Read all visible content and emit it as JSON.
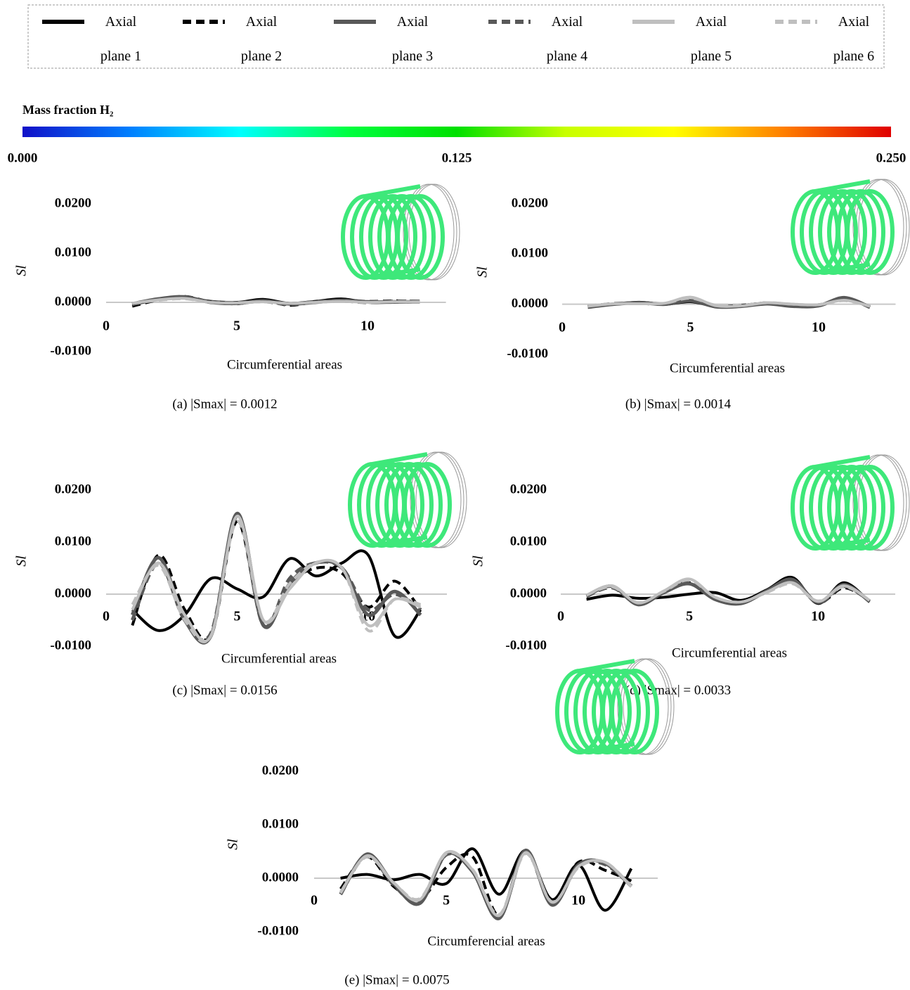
{
  "legend": {
    "series": [
      {
        "name": "Axial plane 1",
        "color": "#000000",
        "dash": false
      },
      {
        "name": "Axial plane 2",
        "color": "#000000",
        "dash": true
      },
      {
        "name": "Axial plane 3",
        "color": "#595959",
        "dash": false
      },
      {
        "name": "Axial plane 4",
        "color": "#595959",
        "dash": true
      },
      {
        "name": "Axial plane 5",
        "color": "#bfbfbf",
        "dash": false
      },
      {
        "name": "Axial plane 6",
        "color": "#bfbfbf",
        "dash": true
      }
    ]
  },
  "colorbar": {
    "title": "Mass fraction H₂",
    "lim": [
      0,
      0.25
    ],
    "colors": [
      "#1010c8",
      "#0080ff",
      "#00ffff",
      "#00ff40",
      "#00e000",
      "#c8ff00",
      "#ffff00",
      "#ff8000",
      "#e00000"
    ],
    "ticks": [
      {
        "value": 0,
        "label": "0.000"
      },
      {
        "value": 0.125,
        "label": "0.125"
      },
      {
        "value": 0.25,
        "label": "0.250"
      }
    ]
  },
  "chart_data": [
    {
      "type": "line",
      "caption": "(a)  |Smax| = 0.0012",
      "x_label": "Circumferential areas",
      "y_label": "Sl",
      "xlim": [
        0,
        13
      ],
      "ylim": [
        -0.01,
        0.02
      ],
      "xticks": [
        0,
        5,
        10
      ],
      "yticks": [
        {
          "value": -0.01,
          "label": "-0.0100"
        },
        {
          "value": 0,
          "label": "0.0000"
        },
        {
          "value": 0.01,
          "label": "0.0100"
        },
        {
          "value": 0.02,
          "label": "0.0200"
        }
      ],
      "x": [
        1,
        2,
        3,
        4,
        5,
        6,
        7,
        8,
        9,
        10,
        11,
        12
      ],
      "series": [
        {
          "values": [
            -0.0005,
            0.0006,
            0.001,
            0.0002,
            0,
            0.0006,
            -0.0002,
            0.0002,
            0.0007,
            0,
            0,
            0.0001
          ]
        },
        {
          "values": [
            -0.0008,
            0.0005,
            0.0012,
            0.0001,
            -0.0003,
            0.0004,
            -0.0006,
            0.0001,
            0.0005,
            0.0002,
            0.0003,
            0.0002
          ]
        },
        {
          "values": [
            -0.0003,
            0.0007,
            0.0011,
            0,
            -0.0002,
            0.0003,
            -0.0003,
            0,
            0.0004,
            0.0001,
            0.0001,
            0.0001
          ]
        },
        {
          "values": [
            -0.0004,
            0.0006,
            0.001,
            0.0001,
            -0.0001,
            0.0002,
            -0.0004,
            0.0001,
            0.0003,
            0,
            0.0002,
            0.0002
          ]
        },
        {
          "values": [
            -0.0002,
            0.0005,
            0.0008,
            0,
            -0.0001,
            0.0001,
            -0.0002,
            0,
            0.0002,
            0,
            0.0001,
            0.0001
          ]
        },
        {
          "values": [
            -0.0002,
            0.0004,
            0.0007,
            0,
            -0.0001,
            0.0001,
            -0.0002,
            0,
            0.0002,
            0,
            0.0001,
            0.0001
          ]
        }
      ]
    },
    {
      "type": "line",
      "caption": "(b)  |Smax| = 0.0014",
      "x_label": "Circumferential areas",
      "y_label": "Sl",
      "xlim": [
        0,
        13
      ],
      "ylim": [
        -0.01,
        0.02
      ],
      "xticks": [
        0,
        5,
        10
      ],
      "yticks": [
        {
          "value": -0.01,
          "label": "-0.0100"
        },
        {
          "value": 0,
          "label": "0.0000"
        },
        {
          "value": 0.01,
          "label": "0.0100"
        },
        {
          "value": 0.02,
          "label": "0.0200"
        }
      ],
      "x": [
        1,
        2,
        3,
        4,
        5,
        6,
        7,
        8,
        9,
        10,
        11,
        12
      ],
      "series": [
        {
          "values": [
            -0.0005,
            0,
            0.0004,
            0,
            0.0005,
            -0.0004,
            -0.0002,
            0.0002,
            -0.0003,
            -0.0002,
            0.0012,
            -0.0006
          ]
        },
        {
          "values": [
            -0.0004,
            0.0001,
            0.0002,
            0.0001,
            0.0008,
            -0.0003,
            -0.0003,
            0.0003,
            -0.0002,
            -0.0001,
            0.001,
            -0.0005
          ]
        },
        {
          "values": [
            -0.0006,
            0,
            0.0003,
            0,
            0.0007,
            -0.0005,
            -0.0004,
            0.0001,
            -0.0004,
            -0.0003,
            0.0013,
            -0.0006
          ]
        },
        {
          "values": [
            -0.0005,
            0.0001,
            0.0002,
            0.0001,
            0.0009,
            -0.0004,
            -0.0003,
            0.0002,
            -0.0003,
            -0.0002,
            0.0011,
            -0.0005
          ]
        },
        {
          "values": [
            -0.0004,
            0.0001,
            0.0001,
            0.0002,
            0.0014,
            -0.0003,
            -0.0003,
            0.0003,
            0,
            -0.0001,
            0.0008,
            -0.0004
          ]
        },
        {
          "values": [
            -0.0003,
            0.0001,
            0.0001,
            0.0002,
            0.0012,
            -0.0002,
            -0.0002,
            0.0003,
            0,
            -0.0001,
            0.0007,
            -0.0004
          ]
        }
      ]
    },
    {
      "type": "line",
      "caption": "(c)  |Smax| = 0.0156",
      "x_label": "Circumferential areas",
      "y_label": "Sl",
      "xlim": [
        0,
        13
      ],
      "ylim": [
        -0.01,
        0.02
      ],
      "xticks": [
        0,
        5,
        10
      ],
      "yticks": [
        {
          "value": -0.01,
          "label": "-0.0100"
        },
        {
          "value": 0,
          "label": "0.0000"
        },
        {
          "value": 0.01,
          "label": "0.0100"
        },
        {
          "value": 0.02,
          "label": "0.0200"
        }
      ],
      "x": [
        1,
        2,
        3,
        4,
        5,
        6,
        7,
        8,
        9,
        10,
        11,
        12
      ],
      "series": [
        {
          "values": [
            -0.003,
            -0.007,
            -0.004,
            0.003,
            0.001,
            -0.0005,
            0.0068,
            0.0035,
            0.006,
            0.0075,
            -0.008,
            -0.003
          ]
        },
        {
          "values": [
            -0.006,
            0.0075,
            -0.003,
            -0.008,
            0.014,
            -0.006,
            0.002,
            0.005,
            0.004,
            -0.0025,
            0.0025,
            -0.003
          ]
        },
        {
          "values": [
            -0.004,
            0.007,
            -0.005,
            -0.008,
            0.0155,
            -0.006,
            0.002,
            0.006,
            0.005,
            -0.004,
            0.0005,
            -0.004
          ]
        },
        {
          "values": [
            -0.005,
            0.006,
            -0.005,
            -0.0075,
            0.015,
            -0.006,
            0.003,
            0.006,
            0.005,
            -0.003,
            0,
            -0.003
          ]
        },
        {
          "values": [
            -0.003,
            0.006,
            -0.004,
            -0.008,
            0.015,
            -0.005,
            0.001,
            0.006,
            0.005,
            -0.006,
            -0.001,
            -0.0025
          ]
        },
        {
          "values": [
            -0.002,
            0.0055,
            -0.005,
            -0.008,
            0.014,
            -0.005,
            0.002,
            0.006,
            0.005,
            -0.007,
            -0.001,
            -0.002
          ]
        }
      ]
    },
    {
      "type": "line",
      "caption": "(d)  |Smax| = 0.0033",
      "x_label": "Circumferential areas",
      "y_label": "Sl",
      "xlim": [
        0,
        13
      ],
      "ylim": [
        -0.01,
        0.02
      ],
      "xticks": [
        0,
        5,
        10
      ],
      "yticks": [
        {
          "value": -0.01,
          "label": "-0.0100"
        },
        {
          "value": 0,
          "label": "0.0000"
        },
        {
          "value": 0.01,
          "label": "0.0100"
        },
        {
          "value": 0.02,
          "label": "0.0200"
        }
      ],
      "x": [
        1,
        2,
        3,
        4,
        5,
        6,
        7,
        8,
        9,
        10,
        11,
        12
      ],
      "series": [
        {
          "values": [
            -0.001,
            -0.0002,
            -0.0008,
            -0.0006,
            0,
            0.0003,
            -0.0012,
            0.0008,
            0.0032,
            -0.0018,
            0.0022,
            -0.0015
          ]
        },
        {
          "values": [
            -0.0004,
            0.0012,
            -0.0018,
            0.0004,
            0.0022,
            -0.0008,
            -0.0016,
            0.0004,
            0.0025,
            -0.0017,
            0.0012,
            -0.0012
          ]
        },
        {
          "values": [
            -0.0003,
            0.0015,
            -0.002,
            0.0003,
            0.002,
            -0.001,
            -0.0018,
            0.0006,
            0.0028,
            -0.0016,
            0.0018,
            -0.0014
          ]
        },
        {
          "values": [
            -0.0004,
            0.0013,
            -0.0019,
            0.0004,
            0.0023,
            -0.0009,
            -0.0017,
            0.0005,
            0.0026,
            -0.0016,
            0.0015,
            -0.0013
          ]
        },
        {
          "values": [
            -0.0002,
            0.0016,
            -0.0017,
            0.0006,
            0.0029,
            -0.0006,
            -0.0015,
            0.0004,
            0.0022,
            -0.0014,
            0.0016,
            -0.0012
          ]
        },
        {
          "values": [
            -0.0002,
            0.0014,
            -0.0016,
            0.0005,
            0.0027,
            -0.0006,
            -0.0015,
            0.0003,
            0.002,
            -0.0013,
            0.0014,
            -0.0011
          ]
        }
      ]
    },
    {
      "type": "line",
      "caption": "(e)  |Smax| = 0.0075",
      "x_label": "Circumferencial areas",
      "y_label": "Sl",
      "xlim": [
        0,
        13
      ],
      "ylim": [
        -0.01,
        0.02
      ],
      "xticks": [
        0,
        5,
        10
      ],
      "yticks": [
        {
          "value": -0.01,
          "label": "-0.0100"
        },
        {
          "value": 0,
          "label": "0.0000"
        },
        {
          "value": 0.01,
          "label": "0.0100"
        },
        {
          "value": 0.02,
          "label": "0.0200"
        }
      ],
      "x": [
        1,
        2,
        3,
        4,
        5,
        6,
        7,
        8,
        9,
        10,
        11,
        12
      ],
      "series": [
        {
          "values": [
            0,
            0.0007,
            -0.0003,
            0.0007,
            -0.001,
            0.0055,
            -0.003,
            0.0052,
            -0.004,
            0.0025,
            -0.006,
            0.0018
          ]
        },
        {
          "values": [
            -0.002,
            0.004,
            -0.0015,
            -0.004,
            0.002,
            0.004,
            -0.007,
            0.005,
            -0.0045,
            0.003,
            0.0015,
            -0.0005
          ]
        },
        {
          "values": [
            -0.003,
            0.0045,
            -0.001,
            -0.0047,
            0.0045,
            0.0012,
            -0.0075,
            0.0052,
            -0.005,
            0.0025,
            0.0028,
            -0.0015
          ]
        },
        {
          "values": [
            -0.003,
            0.0043,
            -0.0012,
            -0.0045,
            0.0044,
            0.0013,
            -0.0073,
            0.005,
            -0.0048,
            0.0024,
            0.0026,
            -0.0014
          ]
        },
        {
          "values": [
            -0.0028,
            0.0042,
            -0.0008,
            -0.004,
            0.0048,
            0.0015,
            -0.007,
            0.0048,
            -0.0045,
            0.0022,
            0.003,
            -0.0016
          ]
        },
        {
          "values": [
            -0.0026,
            0.004,
            -0.0008,
            -0.0038,
            0.0046,
            0.0016,
            -0.0068,
            0.0046,
            -0.0044,
            0.002,
            0.003,
            -0.0015
          ]
        }
      ]
    }
  ]
}
